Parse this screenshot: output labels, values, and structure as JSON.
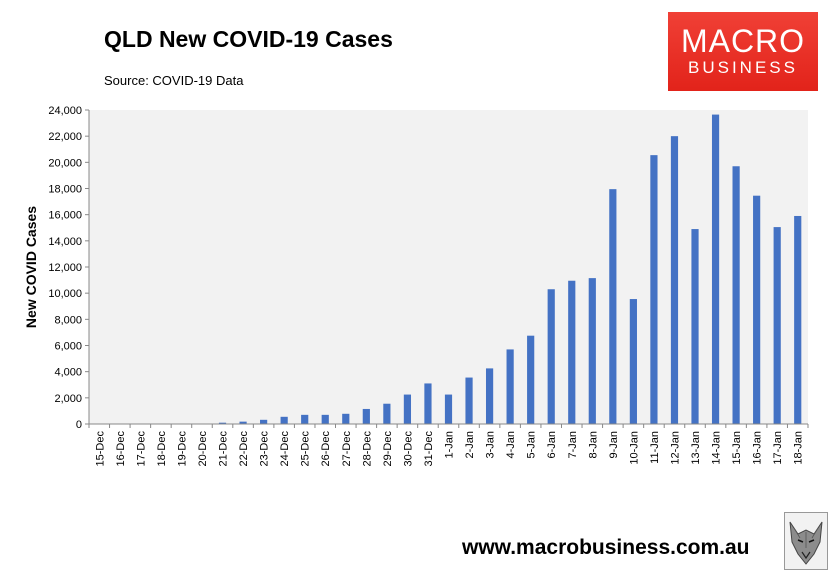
{
  "header": {
    "title": "QLD New COVID-19 Cases",
    "source": "Source: COVID-19 Data"
  },
  "logo": {
    "line1": "MACRO",
    "line2": "BUSINESS",
    "color": "#e2231a"
  },
  "footer": {
    "url": "www.macrobusiness.com.au"
  },
  "colors": {
    "bar": "#4472c4",
    "plot_bg": "#f2f2f2"
  },
  "chart_data": {
    "type": "bar",
    "title": "QLD New COVID-19 Cases",
    "xlabel": "",
    "ylabel": "New COVID Cases",
    "ylim": [
      0,
      24000
    ],
    "yticks": [
      0,
      2000,
      4000,
      6000,
      8000,
      10000,
      12000,
      14000,
      16000,
      18000,
      20000,
      22000,
      24000
    ],
    "ytick_labels": [
      "0",
      "2,000",
      "4,000",
      "6,000",
      "8,000",
      "10,000",
      "12,000",
      "14,000",
      "16,000",
      "18,000",
      "20,000",
      "22,000",
      "24,000"
    ],
    "grid": false,
    "legend": "none",
    "categories": [
      "15-Dec",
      "16-Dec",
      "17-Dec",
      "18-Dec",
      "19-Dec",
      "20-Dec",
      "21-Dec",
      "22-Dec",
      "23-Dec",
      "24-Dec",
      "25-Dec",
      "26-Dec",
      "27-Dec",
      "28-Dec",
      "29-Dec",
      "30-Dec",
      "31-Dec",
      "1-Jan",
      "2-Jan",
      "3-Jan",
      "4-Jan",
      "5-Jan",
      "6-Jan",
      "7-Jan",
      "8-Jan",
      "9-Jan",
      "10-Jan",
      "11-Jan",
      "12-Jan",
      "13-Jan",
      "14-Jan",
      "15-Jan",
      "16-Jan",
      "17-Jan",
      "18-Jan"
    ],
    "values": [
      5,
      3,
      10,
      15,
      20,
      15,
      100,
      180,
      320,
      550,
      700,
      700,
      780,
      1150,
      1550,
      2250,
      3100,
      2250,
      3550,
      4250,
      5700,
      6750,
      10300,
      10950,
      11150,
      17950,
      9550,
      20550,
      22000,
      14900,
      23650,
      19700,
      17450,
      15050,
      15900
    ]
  }
}
